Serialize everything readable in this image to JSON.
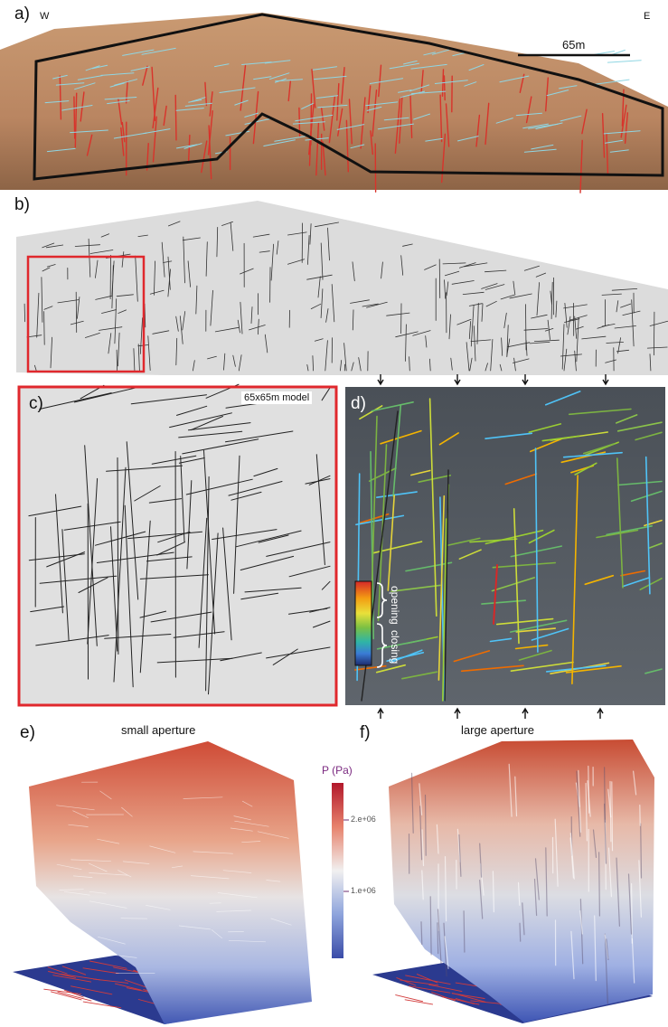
{
  "panels": {
    "a": {
      "letter": "a)",
      "west": "W",
      "east": "E",
      "scale_bar": "65m"
    },
    "b": {
      "letter": "b)"
    },
    "c": {
      "letter": "c)",
      "model_label": "65x65m model"
    },
    "d": {
      "letter": "d)",
      "legend_opening": "opening",
      "legend_closing": "closing"
    },
    "e": {
      "letter": "e)",
      "title": "small aperture"
    },
    "f": {
      "letter": "f)",
      "title": "large aperture"
    }
  },
  "colorbar": {
    "title": "P (Pa)",
    "tick_upper": "2.e+06",
    "tick_lower": "1.e+06"
  },
  "colors": {
    "highlight_box": "#e0282d",
    "fracture_red": "#d8332b",
    "fracture_cyan": "#8fd6e3",
    "model_background": "#dcdcdc",
    "stress_background": "#4e5359",
    "pressure_high": "#d0473a",
    "pressure_low": "#3c4fa6"
  }
}
